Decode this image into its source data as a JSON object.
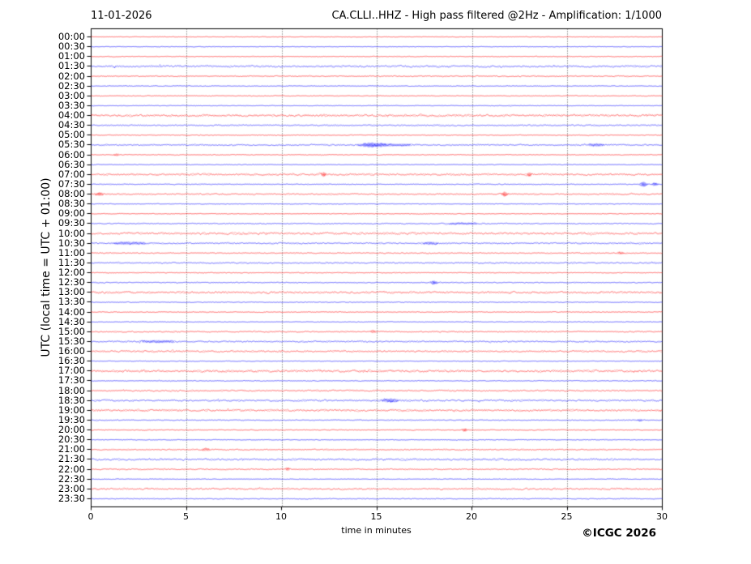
{
  "header": {
    "date_label": "11-01-2026",
    "title": "CA.CLLI..HHZ - High pass filtered @2Hz - Amplification: 1/1000"
  },
  "footer": {
    "copyright": "©ICGC 2026"
  },
  "chart_data": {
    "type": "line",
    "variant": "helicorder-dayplot",
    "title": "CA.CLLI..HHZ - High pass filtered @2Hz - Amplification: 1/1000",
    "date_label": "11-01-2026",
    "xlabel": "time in minutes",
    "ylabel": "UTC (local time = UTC + 01:00)",
    "x_range": [
      0,
      30
    ],
    "x_ticks": [
      "0",
      "5",
      "10",
      "15",
      "20",
      "25",
      "30"
    ],
    "x_tick_values": [
      0,
      5,
      10,
      15,
      20,
      25,
      30
    ],
    "x_gridlines": [
      5,
      10,
      15,
      20,
      25
    ],
    "grid_style": "vertical-dotted",
    "legend": "none",
    "colors": {
      "hour_trace": "#ff0000",
      "half_hour_trace": "#0000ff",
      "grid": "#555555",
      "axis": "#000000",
      "text": "#000000",
      "background": "#ffffff"
    },
    "events_format": "[minute, peak_amplitude_px, sigma_minutes]",
    "rows": [
      {
        "label": "00:00",
        "color": "red",
        "noise": 0.45,
        "events": []
      },
      {
        "label": "00:30",
        "color": "blue",
        "noise": 0.45,
        "events": []
      },
      {
        "label": "01:00",
        "color": "red",
        "noise": 0.5,
        "events": []
      },
      {
        "label": "01:30",
        "color": "blue",
        "noise": 1.3,
        "events": []
      },
      {
        "label": "02:00",
        "color": "red",
        "noise": 0.7,
        "events": []
      },
      {
        "label": "02:30",
        "color": "blue",
        "noise": 0.5,
        "events": []
      },
      {
        "label": "03:00",
        "color": "red",
        "noise": 0.55,
        "events": []
      },
      {
        "label": "03:30",
        "color": "blue",
        "noise": 0.45,
        "events": []
      },
      {
        "label": "04:00",
        "color": "red",
        "noise": 1.4,
        "events": []
      },
      {
        "label": "04:30",
        "color": "blue",
        "noise": 0.9,
        "events": []
      },
      {
        "label": "05:00",
        "color": "red",
        "noise": 0.55,
        "events": []
      },
      {
        "label": "05:30",
        "color": "blue",
        "noise": 0.9,
        "events": [
          [
            14.7,
            1.6,
            0.4
          ],
          [
            15.8,
            0.8,
            0.8
          ],
          [
            26.5,
            1.0,
            0.3
          ]
        ]
      },
      {
        "label": "06:00",
        "color": "red",
        "noise": 0.55,
        "events": [
          [
            1.3,
            1.0,
            0.1
          ]
        ]
      },
      {
        "label": "06:30",
        "color": "blue",
        "noise": 0.5,
        "events": []
      },
      {
        "label": "07:00",
        "color": "red",
        "noise": 1.2,
        "events": [
          [
            12.2,
            1.5,
            0.08
          ],
          [
            23.0,
            1.3,
            0.08
          ]
        ]
      },
      {
        "label": "07:30",
        "color": "blue",
        "noise": 0.6,
        "events": [
          [
            29.0,
            2.0,
            0.12
          ],
          [
            29.6,
            1.5,
            0.1
          ]
        ]
      },
      {
        "label": "08:00",
        "color": "red",
        "noise": 0.9,
        "events": [
          [
            0.4,
            1.2,
            0.15
          ],
          [
            21.7,
            1.8,
            0.1
          ]
        ]
      },
      {
        "label": "08:30",
        "color": "blue",
        "noise": 0.5,
        "events": []
      },
      {
        "label": "09:00",
        "color": "red",
        "noise": 0.5,
        "events": []
      },
      {
        "label": "09:30",
        "color": "blue",
        "noise": 0.7,
        "events": [
          [
            19.5,
            0.6,
            0.8
          ]
        ]
      },
      {
        "label": "10:00",
        "color": "red",
        "noise": 1.4,
        "events": []
      },
      {
        "label": "10:30",
        "color": "blue",
        "noise": 0.9,
        "events": [
          [
            2.0,
            1.0,
            0.6
          ],
          [
            17.8,
            0.9,
            0.3
          ]
        ]
      },
      {
        "label": "11:00",
        "color": "red",
        "noise": 0.7,
        "events": [
          [
            27.8,
            1.0,
            0.12
          ]
        ]
      },
      {
        "label": "11:30",
        "color": "blue",
        "noise": 0.9,
        "events": []
      },
      {
        "label": "12:00",
        "color": "red",
        "noise": 0.55,
        "events": []
      },
      {
        "label": "12:30",
        "color": "blue",
        "noise": 0.6,
        "events": [
          [
            18.0,
            1.5,
            0.12
          ]
        ]
      },
      {
        "label": "13:00",
        "color": "red",
        "noise": 1.4,
        "events": []
      },
      {
        "label": "13:30",
        "color": "blue",
        "noise": 0.55,
        "events": []
      },
      {
        "label": "14:00",
        "color": "red",
        "noise": 0.55,
        "events": []
      },
      {
        "label": "14:30",
        "color": "blue",
        "noise": 0.5,
        "events": []
      },
      {
        "label": "15:00",
        "color": "red",
        "noise": 0.8,
        "events": [
          [
            14.8,
            0.9,
            0.1
          ]
        ]
      },
      {
        "label": "15:30",
        "color": "blue",
        "noise": 0.9,
        "events": [
          [
            3.5,
            0.8,
            0.7
          ]
        ]
      },
      {
        "label": "16:00",
        "color": "red",
        "noise": 1.1,
        "events": []
      },
      {
        "label": "16:30",
        "color": "blue",
        "noise": 0.5,
        "events": []
      },
      {
        "label": "17:00",
        "color": "red",
        "noise": 1.4,
        "events": []
      },
      {
        "label": "17:30",
        "color": "blue",
        "noise": 0.55,
        "events": []
      },
      {
        "label": "18:00",
        "color": "red",
        "noise": 1.0,
        "events": []
      },
      {
        "label": "18:30",
        "color": "blue",
        "noise": 1.2,
        "events": [
          [
            15.7,
            1.1,
            0.3
          ]
        ]
      },
      {
        "label": "19:00",
        "color": "red",
        "noise": 1.3,
        "events": []
      },
      {
        "label": "19:30",
        "color": "blue",
        "noise": 0.6,
        "events": [
          [
            28.8,
            0.9,
            0.1
          ]
        ]
      },
      {
        "label": "20:00",
        "color": "red",
        "noise": 0.6,
        "events": [
          [
            19.6,
            1.4,
            0.08
          ]
        ]
      },
      {
        "label": "20:30",
        "color": "blue",
        "noise": 0.5,
        "events": []
      },
      {
        "label": "21:00",
        "color": "red",
        "noise": 0.8,
        "events": [
          [
            6.0,
            1.0,
            0.15
          ]
        ]
      },
      {
        "label": "21:30",
        "color": "blue",
        "noise": 1.3,
        "events": []
      },
      {
        "label": "22:00",
        "color": "red",
        "noise": 0.8,
        "events": [
          [
            10.3,
            1.3,
            0.08
          ]
        ]
      },
      {
        "label": "22:30",
        "color": "blue",
        "noise": 0.5,
        "events": []
      },
      {
        "label": "23:00",
        "color": "red",
        "noise": 1.2,
        "events": []
      },
      {
        "label": "23:30",
        "color": "blue",
        "noise": 0.6,
        "events": []
      }
    ]
  }
}
